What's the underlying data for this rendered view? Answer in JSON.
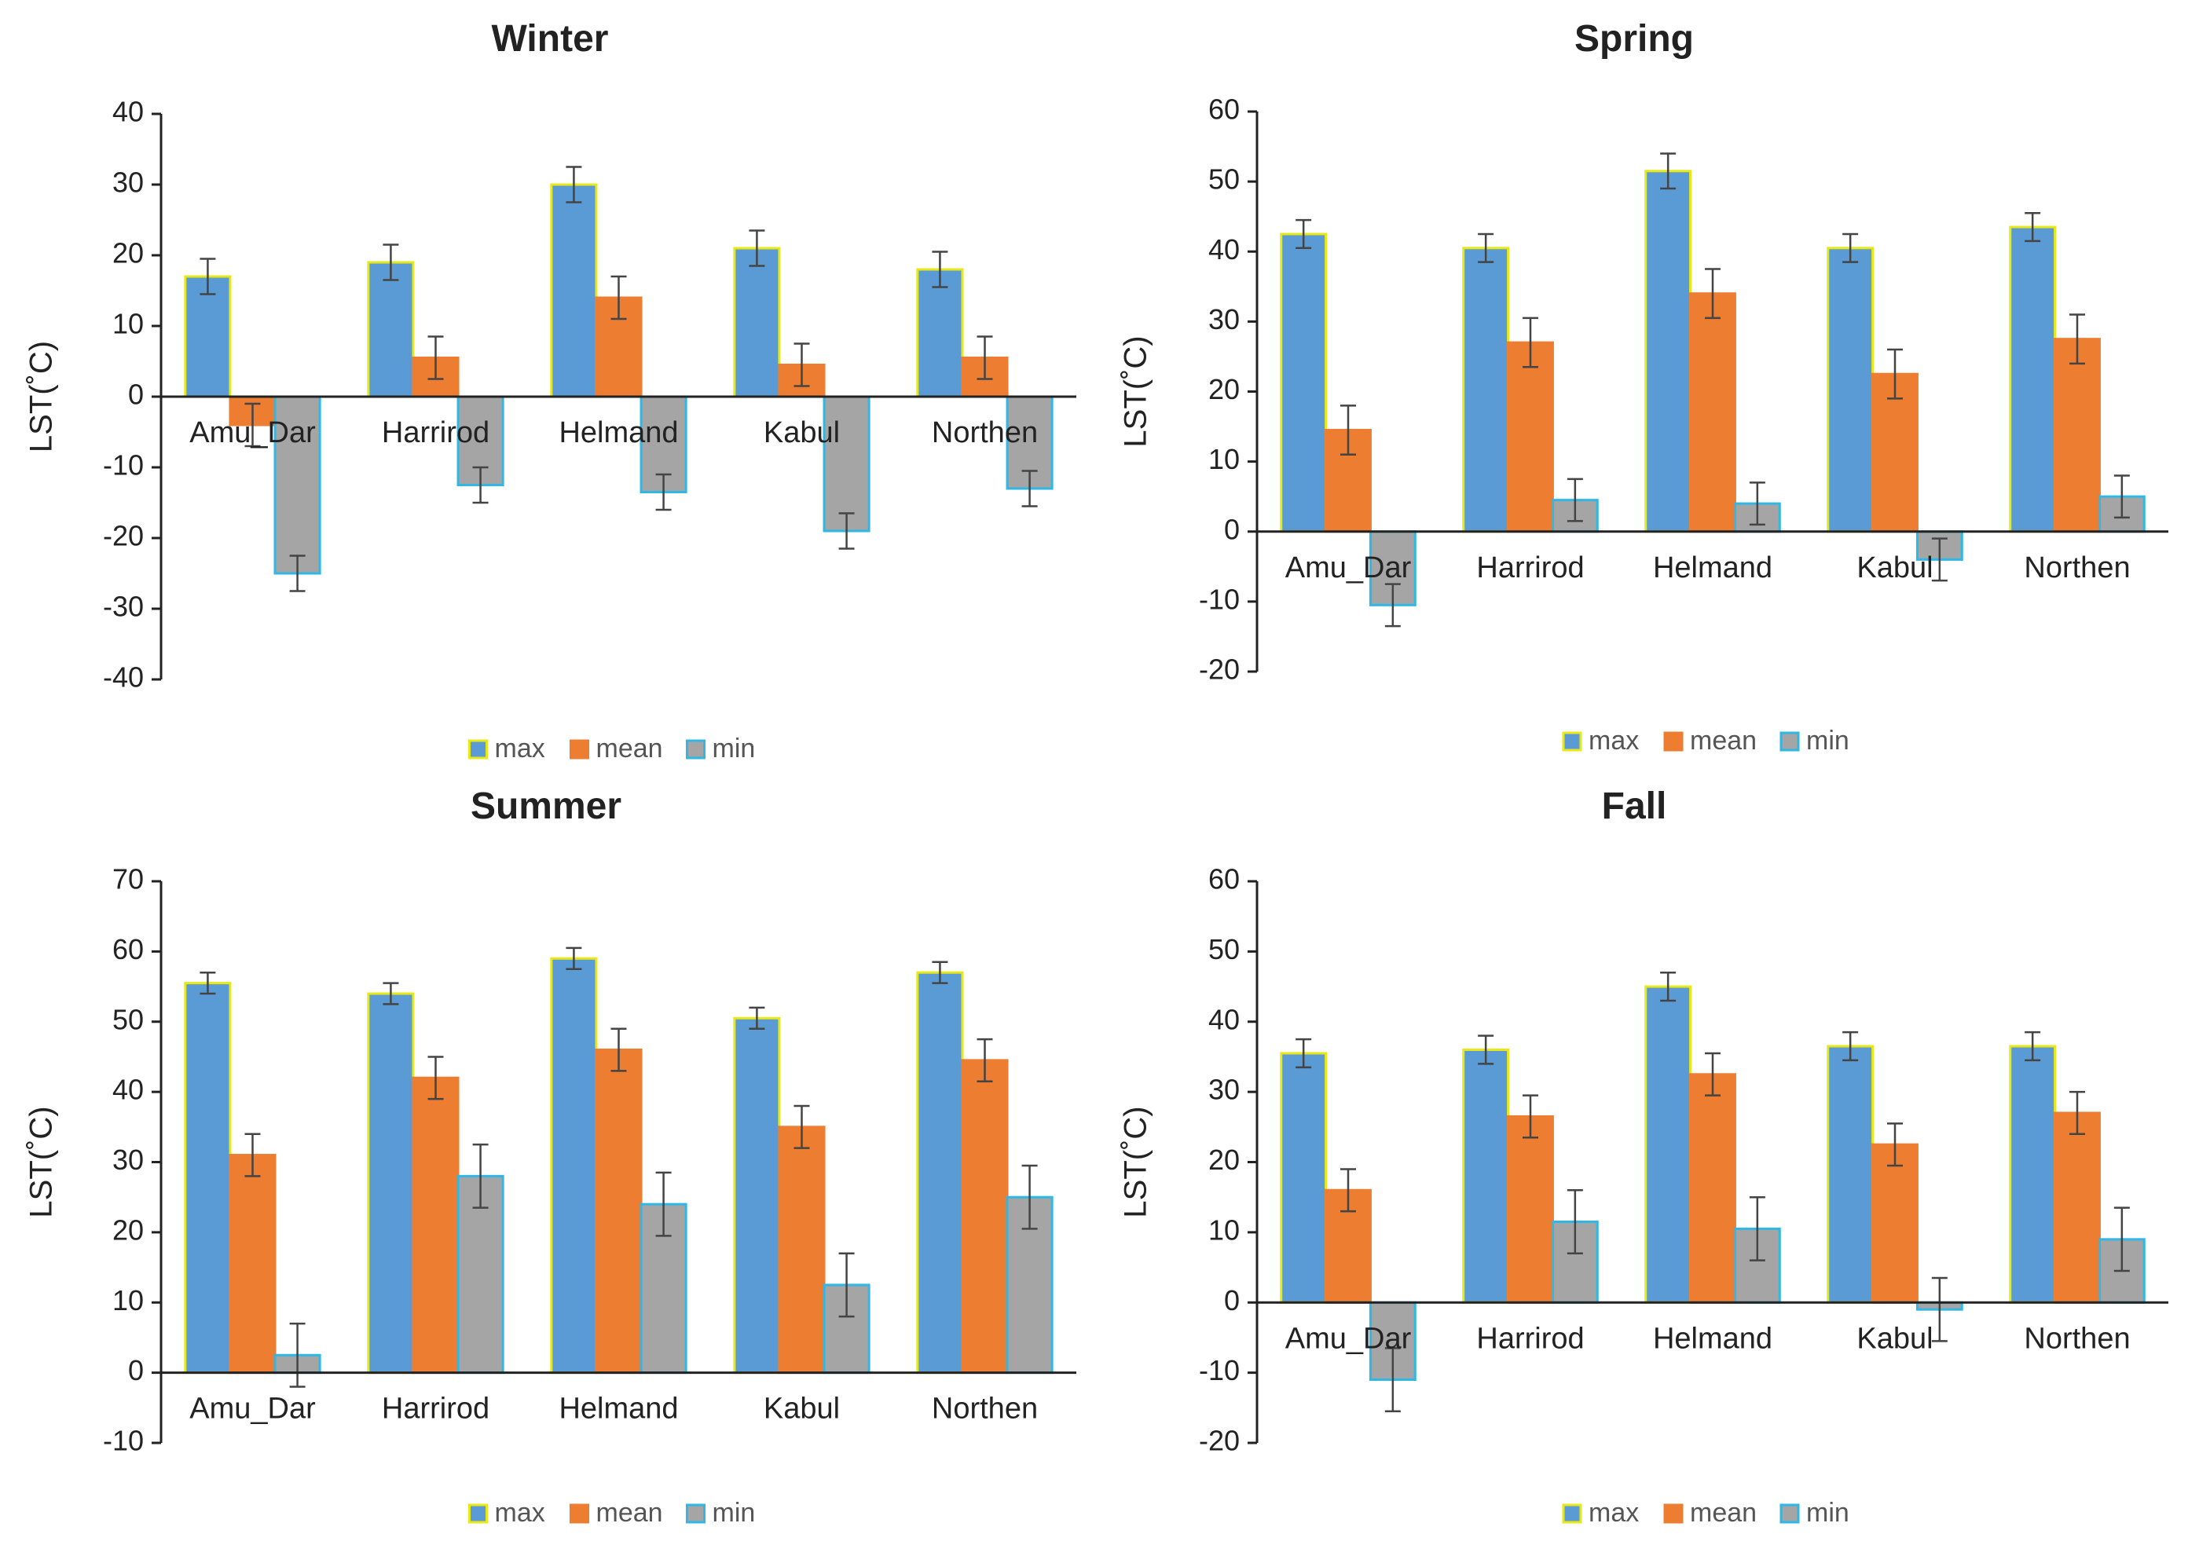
{
  "colors": {
    "max": "#5b9bd5",
    "mean": "#ed7d31",
    "min": "#a5a5a5",
    "max_border": "#e8e817",
    "min_border": "#2fb7e6",
    "axis": "#222222",
    "error": "#444444"
  },
  "chart_data": [
    {
      "type": "bar",
      "title": "Winter",
      "ylabel": "LST(˚C)",
      "xlabel": "",
      "ylim": [
        -40,
        40
      ],
      "ystep": 10,
      "grid": false,
      "legend": "bottom",
      "categories": [
        "Amu_Dar",
        "Harrirod",
        "Helmand",
        "Kabul",
        "Northen"
      ],
      "series": [
        {
          "name": "max",
          "values": [
            17,
            19,
            30,
            21,
            18
          ],
          "errors": [
            2.5,
            2.5,
            2.5,
            2.5,
            2.5
          ]
        },
        {
          "name": "mean",
          "values": [
            -4,
            5.5,
            14,
            4.5,
            5.5
          ],
          "errors": [
            3,
            3,
            3,
            3,
            3
          ]
        },
        {
          "name": "min",
          "values": [
            -25,
            -12.5,
            -13.5,
            -19,
            -13
          ],
          "errors": [
            2.5,
            2.5,
            2.5,
            2.5,
            2.5
          ]
        }
      ]
    },
    {
      "type": "bar",
      "title": "Spring",
      "ylabel": "LST(˚C)",
      "xlabel": "",
      "ylim": [
        -20,
        60
      ],
      "ystep": 10,
      "grid": false,
      "legend": "bottom",
      "categories": [
        "Amu_Dar",
        "Harrirod",
        "Helmand",
        "Kabul",
        "Northen"
      ],
      "series": [
        {
          "name": "max",
          "values": [
            42.5,
            40.5,
            51.5,
            40.5,
            43.5
          ],
          "errors": [
            2,
            2,
            2.5,
            2,
            2
          ]
        },
        {
          "name": "mean",
          "values": [
            14.5,
            27,
            34,
            22.5,
            27.5
          ],
          "errors": [
            3.5,
            3.5,
            3.5,
            3.5,
            3.5
          ]
        },
        {
          "name": "min",
          "values": [
            -10.5,
            4.5,
            4,
            -4,
            5
          ],
          "errors": [
            3,
            3,
            3,
            3,
            3
          ]
        }
      ]
    },
    {
      "type": "bar",
      "title": "Summer",
      "ylabel": "LST(˚C)",
      "xlabel": "",
      "ylim": [
        -10,
        70
      ],
      "ystep": 10,
      "grid": false,
      "legend": "bottom",
      "categories": [
        "Amu_Dar",
        "Harrirod",
        "Helmand",
        "Kabul",
        "Northen"
      ],
      "series": [
        {
          "name": "max",
          "values": [
            55.5,
            54,
            59,
            50.5,
            57
          ],
          "errors": [
            1.5,
            1.5,
            1.5,
            1.5,
            1.5
          ]
        },
        {
          "name": "mean",
          "values": [
            31,
            42,
            46,
            35,
            44.5
          ],
          "errors": [
            3,
            3,
            3,
            3,
            3
          ]
        },
        {
          "name": "min",
          "values": [
            2.5,
            28,
            24,
            12.5,
            25
          ],
          "errors": [
            4.5,
            4.5,
            4.5,
            4.5,
            4.5
          ]
        }
      ]
    },
    {
      "type": "bar",
      "title": "Fall",
      "ylabel": "LST(˚C)",
      "xlabel": "",
      "ylim": [
        -20,
        60
      ],
      "ystep": 10,
      "grid": false,
      "legend": "bottom",
      "categories": [
        "Amu_Dar",
        "Harrirod",
        "Helmand",
        "Kabul",
        "Northen"
      ],
      "series": [
        {
          "name": "max",
          "values": [
            35.5,
            36,
            45,
            36.5,
            36.5
          ],
          "errors": [
            2,
            2,
            2,
            2,
            2
          ]
        },
        {
          "name": "mean",
          "values": [
            16,
            26.5,
            32.5,
            22.5,
            27
          ],
          "errors": [
            3,
            3,
            3,
            3,
            3
          ]
        },
        {
          "name": "min",
          "values": [
            -11,
            11.5,
            10.5,
            -1,
            9
          ],
          "errors": [
            4.5,
            4.5,
            4.5,
            4.5,
            4.5
          ]
        }
      ]
    }
  ]
}
